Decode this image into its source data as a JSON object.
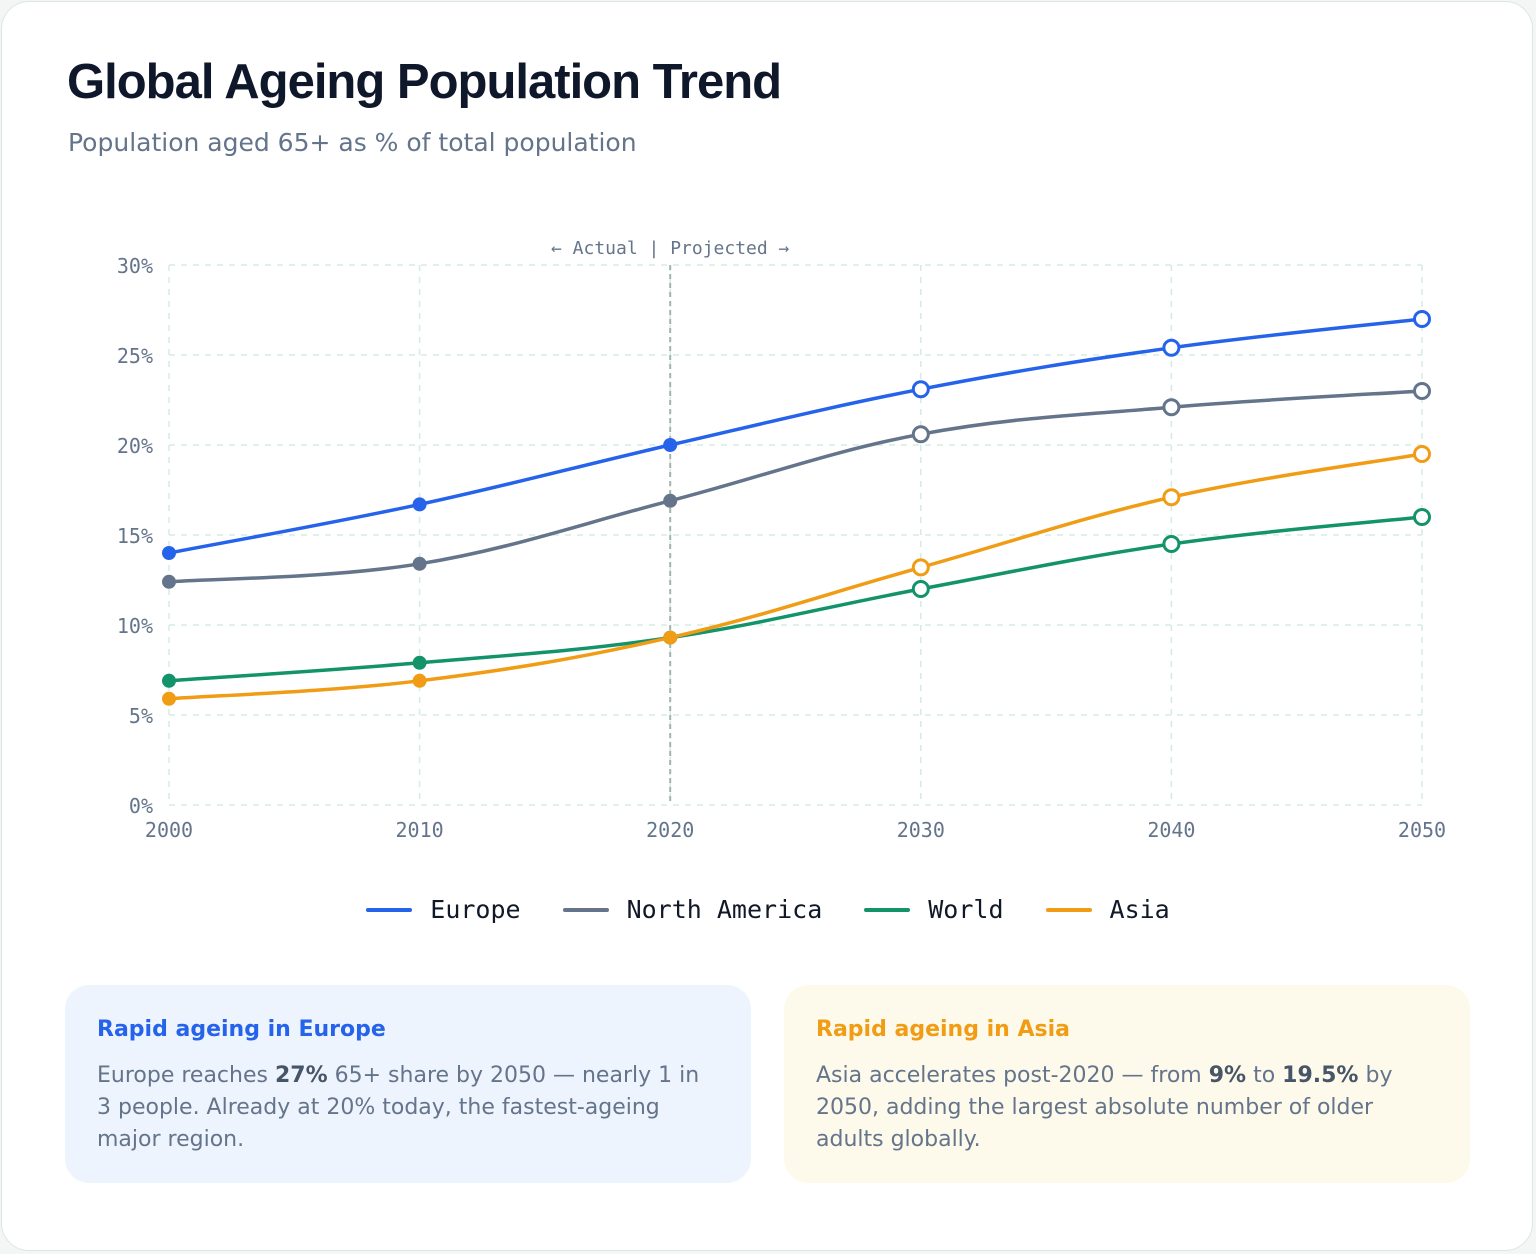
{
  "title": "Global Ageing Population Trend",
  "subtitle": "Population aged 65+ as % of total population",
  "colors": {
    "europe": "#2563eb",
    "north_america": "#64748b",
    "world": "#13936a",
    "asia": "#f09c14",
    "grid": "#d5ece3"
  },
  "chart_data": {
    "type": "line",
    "x": [
      2000,
      2010,
      2020,
      2030,
      2040,
      2050
    ],
    "xticks": [
      "2000",
      "2010",
      "2020",
      "2030",
      "2040",
      "2050"
    ],
    "yticks": [
      "0%",
      "5%",
      "10%",
      "15%",
      "20%",
      "25%",
      "30%"
    ],
    "ylim": [
      0,
      30
    ],
    "grid": true,
    "divider": {
      "x": 2020,
      "label": "← Actual | Projected →"
    },
    "actual_through": 2020,
    "legend_position": "bottom",
    "series": [
      {
        "key": "europe",
        "name": "Europe",
        "values": [
          14.0,
          16.7,
          20.0,
          23.1,
          25.4,
          27.0
        ]
      },
      {
        "key": "north_america",
        "name": "North America",
        "values": [
          12.4,
          13.4,
          16.9,
          20.6,
          22.1,
          23.0
        ]
      },
      {
        "key": "world",
        "name": "World",
        "values": [
          6.9,
          7.9,
          9.3,
          12.0,
          14.5,
          16.0
        ]
      },
      {
        "key": "asia",
        "name": "Asia",
        "values": [
          5.9,
          6.9,
          9.3,
          13.2,
          17.1,
          19.5
        ]
      }
    ]
  },
  "notes": {
    "europe": {
      "title": "Rapid ageing in Europe",
      "t1": "Europe reaches ",
      "b1": "27%",
      "t2": " 65+ share by 2050 — nearly 1 in 3 people. Already at 20% today, the fastest-ageing major region."
    },
    "asia": {
      "title": "Rapid ageing in Asia",
      "t1": "Asia accelerates post-2020 — from ",
      "b1": "9%",
      "t2": " to ",
      "b2": "19.5%",
      "t3": " by 2050, adding the largest absolute number of older adults globally."
    }
  }
}
